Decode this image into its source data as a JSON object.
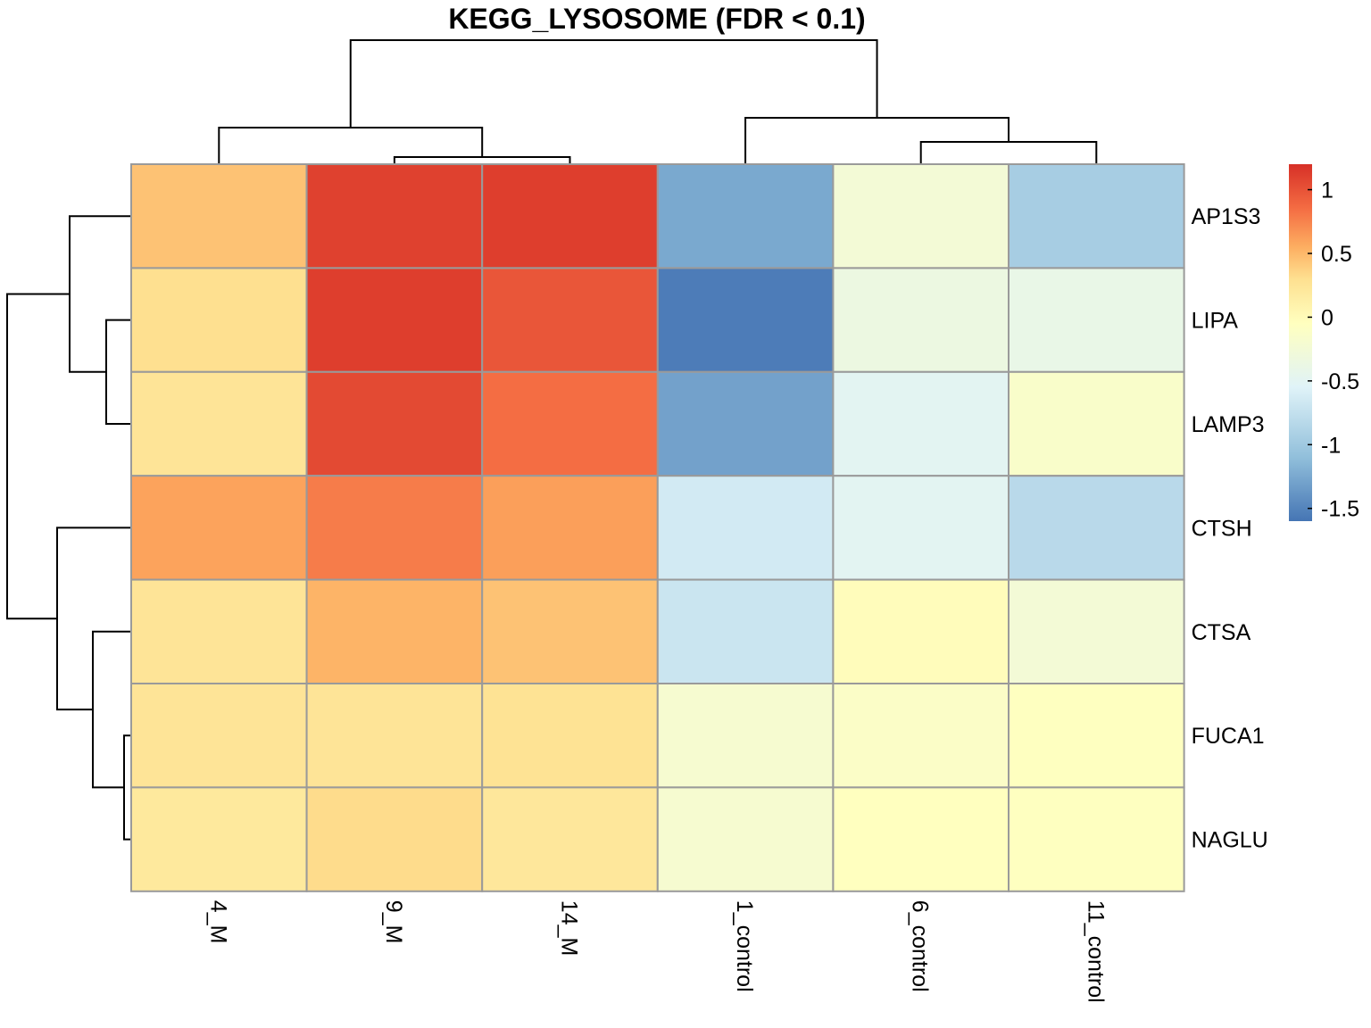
{
  "chart_data": {
    "type": "heatmap",
    "title": "KEGG_LYSOSOME (FDR < 0.1)",
    "rows": [
      "AP1S3",
      "LIPA",
      "LAMP3",
      "CTSH",
      "CTSA",
      "FUCA1",
      "NAGLU"
    ],
    "columns": [
      "4_M",
      "9_M",
      "14_M",
      "1_control",
      "6_control",
      "11_control"
    ],
    "values": [
      [
        0.45,
        1.1,
        1.12,
        -1.25,
        -0.25,
        -0.95
      ],
      [
        0.3,
        1.12,
        0.98,
        -1.55,
        -0.35,
        -0.4
      ],
      [
        0.25,
        1.05,
        0.85,
        -1.3,
        -0.5,
        -0.15
      ],
      [
        0.6,
        0.78,
        0.62,
        -0.65,
        -0.5,
        -0.82
      ],
      [
        0.25,
        0.52,
        0.45,
        -0.7,
        -0.02,
        -0.25
      ],
      [
        0.25,
        0.25,
        0.27,
        -0.2,
        -0.12,
        -0.06
      ],
      [
        0.2,
        0.32,
        0.22,
        -0.2,
        -0.05,
        -0.06
      ]
    ],
    "color_scale": {
      "min": -1.6,
      "max": 1.2,
      "stops": [
        {
          "value": -1.6,
          "color": "#4575b4"
        },
        {
          "value": -1.1,
          "color": "#91bfdb"
        },
        {
          "value": -0.55,
          "color": "#e0f3f8"
        },
        {
          "value": -0.05,
          "color": "#ffffbf"
        },
        {
          "value": 0.3,
          "color": "#fee090"
        },
        {
          "value": 0.55,
          "color": "#fdae61"
        },
        {
          "value": 0.85,
          "color": "#f46d43"
        },
        {
          "value": 1.2,
          "color": "#d73027"
        }
      ]
    },
    "legend": {
      "position": "right",
      "ticks": [
        1,
        0.5,
        0,
        -0.5,
        -1,
        -1.5
      ],
      "tick_labels": [
        "1",
        "0.5",
        "0",
        "-0.5",
        "-1",
        "-1.5"
      ]
    },
    "col_dendrogram_merges": [
      [
        1,
        2
      ],
      [
        0,
        "9_M+14_M"
      ],
      [
        4,
        5
      ],
      [
        3,
        "6_control+11_control"
      ],
      [
        "M",
        "control"
      ]
    ],
    "row_dendrogram_merges": [
      [
        1,
        2
      ],
      [
        0,
        "LIPA+LAMP3"
      ],
      [
        5,
        6
      ],
      [
        4,
        "FUCA1+NAGLU"
      ],
      [
        3,
        "CTSA+FUCA1+NAGLU"
      ],
      [
        "top",
        "bottom"
      ]
    ]
  }
}
